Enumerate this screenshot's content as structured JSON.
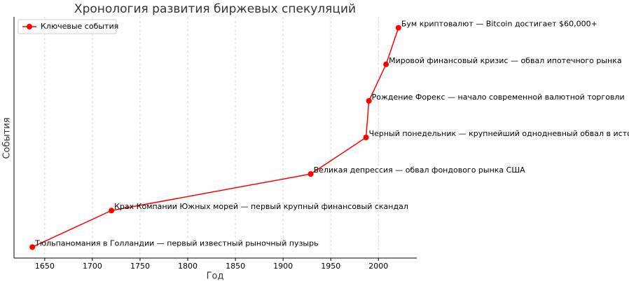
{
  "chart_data": {
    "type": "line",
    "title": "Хронология развития биржевых спекуляций",
    "xlabel": "Год",
    "ylabel": "События",
    "x": [
      1637,
      1720,
      1929,
      1987,
      1990,
      2008,
      2021
    ],
    "series": [
      {
        "name": "Ключевые события",
        "color": "#ff0000",
        "values": [
          0,
          1,
          2,
          3,
          4,
          5,
          6
        ]
      }
    ],
    "point_labels": [
      "Тюльпаномания в Голландии — первый известный рыночный пузырь",
      "Крах Компании Южных морей — первый крупный финансовый скандал",
      "Великая депрессия — обвал фондового рынка США",
      "Черный понедельник — крупнейший однодневный обвал в истории",
      "Рождение Форекс — начало современной валютной торговли",
      "Мировой финансовый кризис — обвал ипотечного рынка",
      "Бум криптовалют — Bitcoin достигает $60,000+"
    ],
    "xlim": [
      1617.8,
      2040.2
    ],
    "ylim": [
      -0.3,
      6.3
    ],
    "xticks": [
      1650,
      1700,
      1750,
      1800,
      1850,
      1900,
      1950,
      2000
    ],
    "grid": true,
    "legend": "upper left"
  }
}
